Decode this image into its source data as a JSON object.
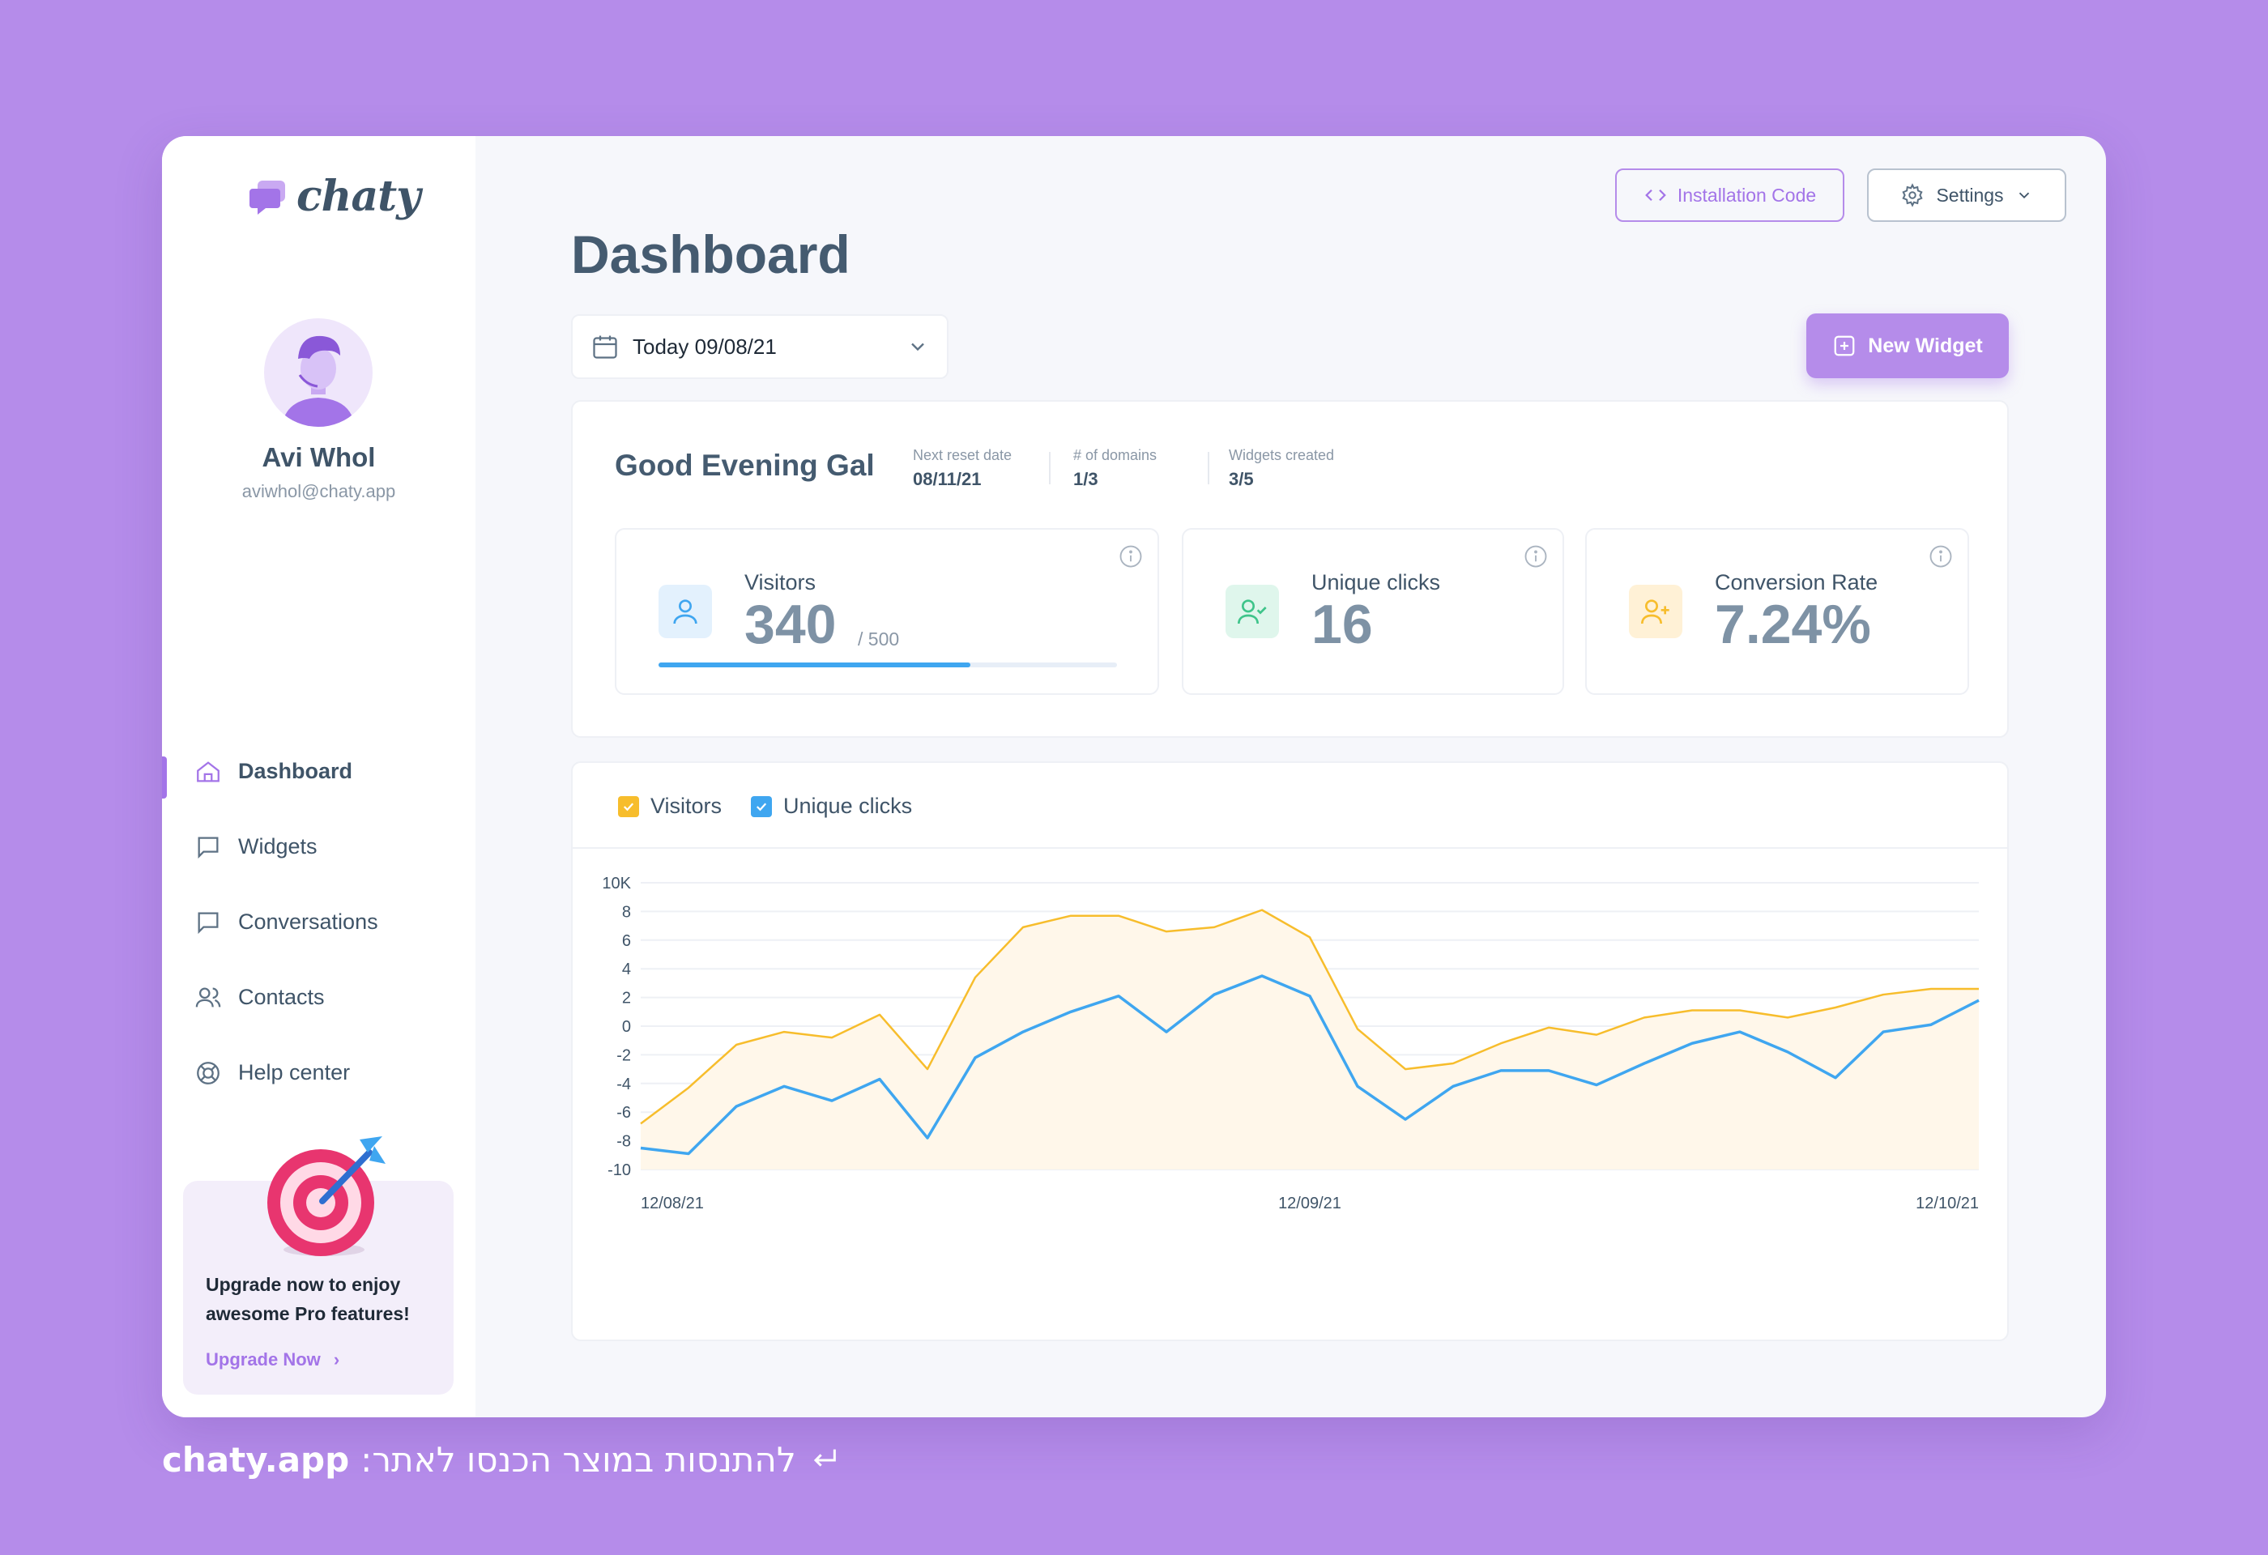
{
  "brand": {
    "name": "chaty",
    "color": "#b58cea"
  },
  "user": {
    "name": "Avi Whol",
    "email": "aviwhol@chaty.app"
  },
  "nav": [
    {
      "label": "Dashboard",
      "icon": "home-icon",
      "active": true
    },
    {
      "label": "Widgets",
      "icon": "message-square-icon",
      "active": false
    },
    {
      "label": "Conversations",
      "icon": "message-square-icon",
      "active": false
    },
    {
      "label": "Contacts",
      "icon": "users-icon",
      "active": false
    },
    {
      "label": "Help center",
      "icon": "lifebuoy-icon",
      "active": false
    }
  ],
  "upgrade": {
    "title": "Upgrade now to enjoy awesome Pro features!",
    "link": "Upgrade Now"
  },
  "header": {
    "install_label": "Installation Code",
    "settings_label": "Settings",
    "title": "Dashboard"
  },
  "date_filter": {
    "value": "Today 09/08/21"
  },
  "new_widget_label": "New Widget",
  "summary": {
    "greeting": "Good Evening Gal",
    "meta": [
      {
        "label": "Next reset date",
        "value": "08/11/21"
      },
      {
        "label": "# of domains",
        "value": "1/3"
      },
      {
        "label": "Widgets created",
        "value": "3/5"
      }
    ]
  },
  "stats": {
    "visitors": {
      "label": "Visitors",
      "value": "340",
      "limit": "/ 500",
      "progress": 0.68
    },
    "clicks": {
      "label": "Unique clicks",
      "value": "16"
    },
    "conversion": {
      "label": "Conversion Rate",
      "value": "7.24%"
    }
  },
  "colors": {
    "visitors": "#f7bd2c",
    "clicks": "#3fa6f0",
    "progress": "#3fa6f0"
  },
  "chart_data": {
    "type": "line",
    "legend": [
      "Visitors",
      "Unique clicks"
    ],
    "y_ticks": [
      "10K",
      "8",
      "6",
      "4",
      "2",
      "0",
      "-2",
      "-4",
      "-6",
      "-8",
      "-10"
    ],
    "ylim": [
      -10,
      10
    ],
    "x_tick_labels": [
      "12/08/21",
      "12/09/21",
      "12/10/21"
    ],
    "x_tick_positions": [
      0,
      14,
      28
    ],
    "grid": true,
    "series": [
      {
        "name": "Visitors",
        "values": [
          -6.8,
          -4.3,
          -1.3,
          -0.4,
          -0.8,
          0.8,
          -3.0,
          3.4,
          6.9,
          7.7,
          7.7,
          6.6,
          6.9,
          8.1,
          6.2,
          -0.2,
          -3.0,
          -2.6,
          -1.2,
          -0.1,
          -0.6,
          0.6,
          1.1,
          1.1,
          0.6,
          1.3,
          2.2,
          2.6,
          2.6
        ]
      },
      {
        "name": "Unique clicks",
        "values": [
          -8.5,
          -8.9,
          -5.6,
          -4.2,
          -5.2,
          -3.7,
          -7.8,
          -2.2,
          -0.4,
          1.0,
          2.1,
          -0.4,
          2.2,
          3.5,
          2.1,
          -4.2,
          -6.5,
          -4.2,
          -3.1,
          -3.1,
          -4.1,
          -2.6,
          -1.2,
          -0.4,
          -1.8,
          -3.6,
          -0.4,
          0.1,
          1.8
        ]
      }
    ]
  },
  "footer": {
    "text": "להתנסות במוצר הכנסו לאתר:",
    "domain": "chaty.app"
  }
}
